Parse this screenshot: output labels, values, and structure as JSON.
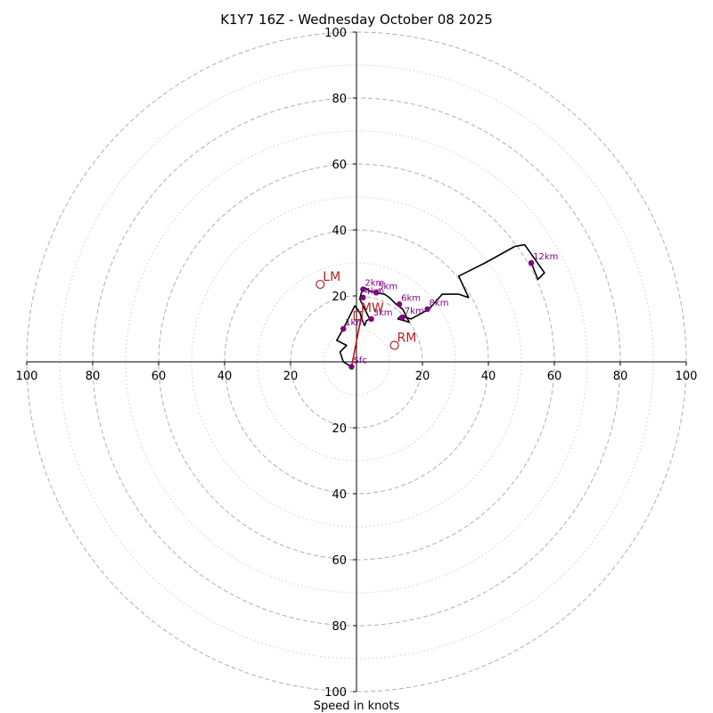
{
  "chart_data": {
    "type": "hodograph",
    "title": "K1Y7 16Z - Wednesday October 08 2025",
    "xlabel": "Speed in knots",
    "max_speed": 100,
    "major_rings": [
      20,
      40,
      60,
      80,
      100
    ],
    "minor_rings": [
      10,
      30,
      50,
      70,
      90
    ],
    "tick_labels": {
      "top": [
        "20",
        "40",
        "60",
        "80",
        "100"
      ],
      "bottom": [
        "20",
        "40",
        "60",
        "80",
        "100"
      ],
      "left": [
        "20",
        "40",
        "60",
        "80",
        "100"
      ],
      "right": [
        "20",
        "40",
        "60",
        "80",
        "100"
      ]
    },
    "hodograph_trace": [
      [
        -1.5,
        -1.5
      ],
      [
        -4,
        0
      ],
      [
        -5,
        3
      ],
      [
        -3,
        5
      ],
      [
        -6,
        6.5
      ],
      [
        -4,
        10
      ],
      [
        -2,
        14
      ],
      [
        -0.5,
        17
      ],
      [
        1,
        15
      ],
      [
        2,
        12
      ],
      [
        2.5,
        11
      ],
      [
        3,
        12.5
      ],
      [
        4,
        13
      ],
      [
        2,
        17
      ],
      [
        1,
        19
      ],
      [
        1.5,
        21
      ],
      [
        2.5,
        22.5
      ],
      [
        4,
        21.5
      ],
      [
        5.5,
        21
      ],
      [
        8.5,
        20.5
      ],
      [
        10,
        19.5
      ],
      [
        12,
        17.5
      ],
      [
        14,
        16
      ],
      [
        16,
        12
      ],
      [
        14.5,
        12.5
      ],
      [
        12.5,
        13
      ],
      [
        13.5,
        14
      ],
      [
        16.5,
        13
      ],
      [
        22,
        16
      ],
      [
        26,
        20.5
      ],
      [
        31,
        20.5
      ],
      [
        34,
        19.5
      ],
      [
        31,
        26
      ],
      [
        37,
        29
      ],
      [
        39,
        30
      ],
      [
        48,
        35
      ],
      [
        51,
        35.5
      ],
      [
        57,
        27
      ],
      [
        55,
        25
      ],
      [
        53,
        30
      ]
    ],
    "height_markers": [
      {
        "label": "Sfc",
        "u": -1.5,
        "v": -1.5
      },
      {
        "label": "1km",
        "u": -4,
        "v": 10
      },
      {
        "label": "2km",
        "u": 2,
        "v": 22
      },
      {
        "label": "4km",
        "u": 2,
        "v": 19.5
      },
      {
        "label": "5km",
        "u": 6,
        "v": 21
      },
      {
        "label": "3km",
        "u": 4.5,
        "v": 13
      },
      {
        "label": "6km",
        "u": 13,
        "v": 17.5
      },
      {
        "label": "7km",
        "u": 14,
        "v": 13.5
      },
      {
        "label": "8km",
        "u": 21.5,
        "v": 16
      },
      {
        "label": "12km",
        "u": 53,
        "v": 30
      }
    ],
    "storm_motion": [
      {
        "label": "LM",
        "u": -11,
        "v": 23.5,
        "marker": "circle"
      },
      {
        "label": "RM",
        "u": 11.5,
        "v": 5,
        "marker": "circle"
      },
      {
        "label": "MW",
        "u": 0.5,
        "v": 14,
        "marker": "square"
      }
    ],
    "shear_vector": {
      "from": [
        -1.5,
        -1.5
      ],
      "to": [
        1.5,
        14
      ]
    },
    "colors": {
      "trace": "#000000",
      "height_markers": "#800080",
      "storm_motion": "#b22222",
      "shear_vector": "#cc0000",
      "grid": "#b0b0b0"
    }
  }
}
